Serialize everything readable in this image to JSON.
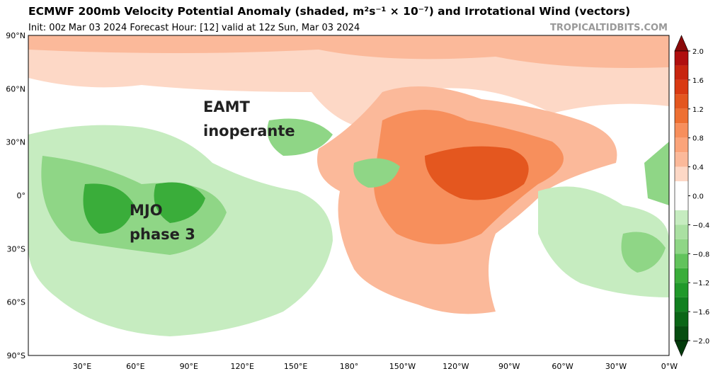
{
  "header": {
    "title": "ECMWF 200mb Velocity Potential Anomaly (shaded, m²s⁻¹ × 10⁻⁷) and Irrotational Wind (vectors)",
    "subtitle": "Init: 00z Mar 03 2024   Forecast Hour: [12]   valid at 12z Sun, Mar 03 2024",
    "source": "TROPICALTIDBITS.COM"
  },
  "map": {
    "lat_labels": [
      "90°N",
      "60°N",
      "30°N",
      "0°",
      "30°S",
      "60°S",
      "90°S"
    ],
    "lon_labels": [
      "30°E",
      "60°E",
      "90°E",
      "120°E",
      "150°E",
      "180°",
      "150°W",
      "120°W",
      "90°W",
      "60°W",
      "30°W",
      "0°W"
    ],
    "annotations": [
      {
        "lines": [
          "EAMT",
          "inoperante"
        ]
      },
      {
        "lines": [
          "MJO",
          "phase 3"
        ]
      }
    ]
  },
  "colorbar": {
    "labels": [
      "2.0",
      "1.6",
      "1.2",
      "0.8",
      "0.4",
      "0.0",
      "−0.4",
      "−0.8",
      "−1.2",
      "−1.6",
      "−2.0"
    ]
  }
}
